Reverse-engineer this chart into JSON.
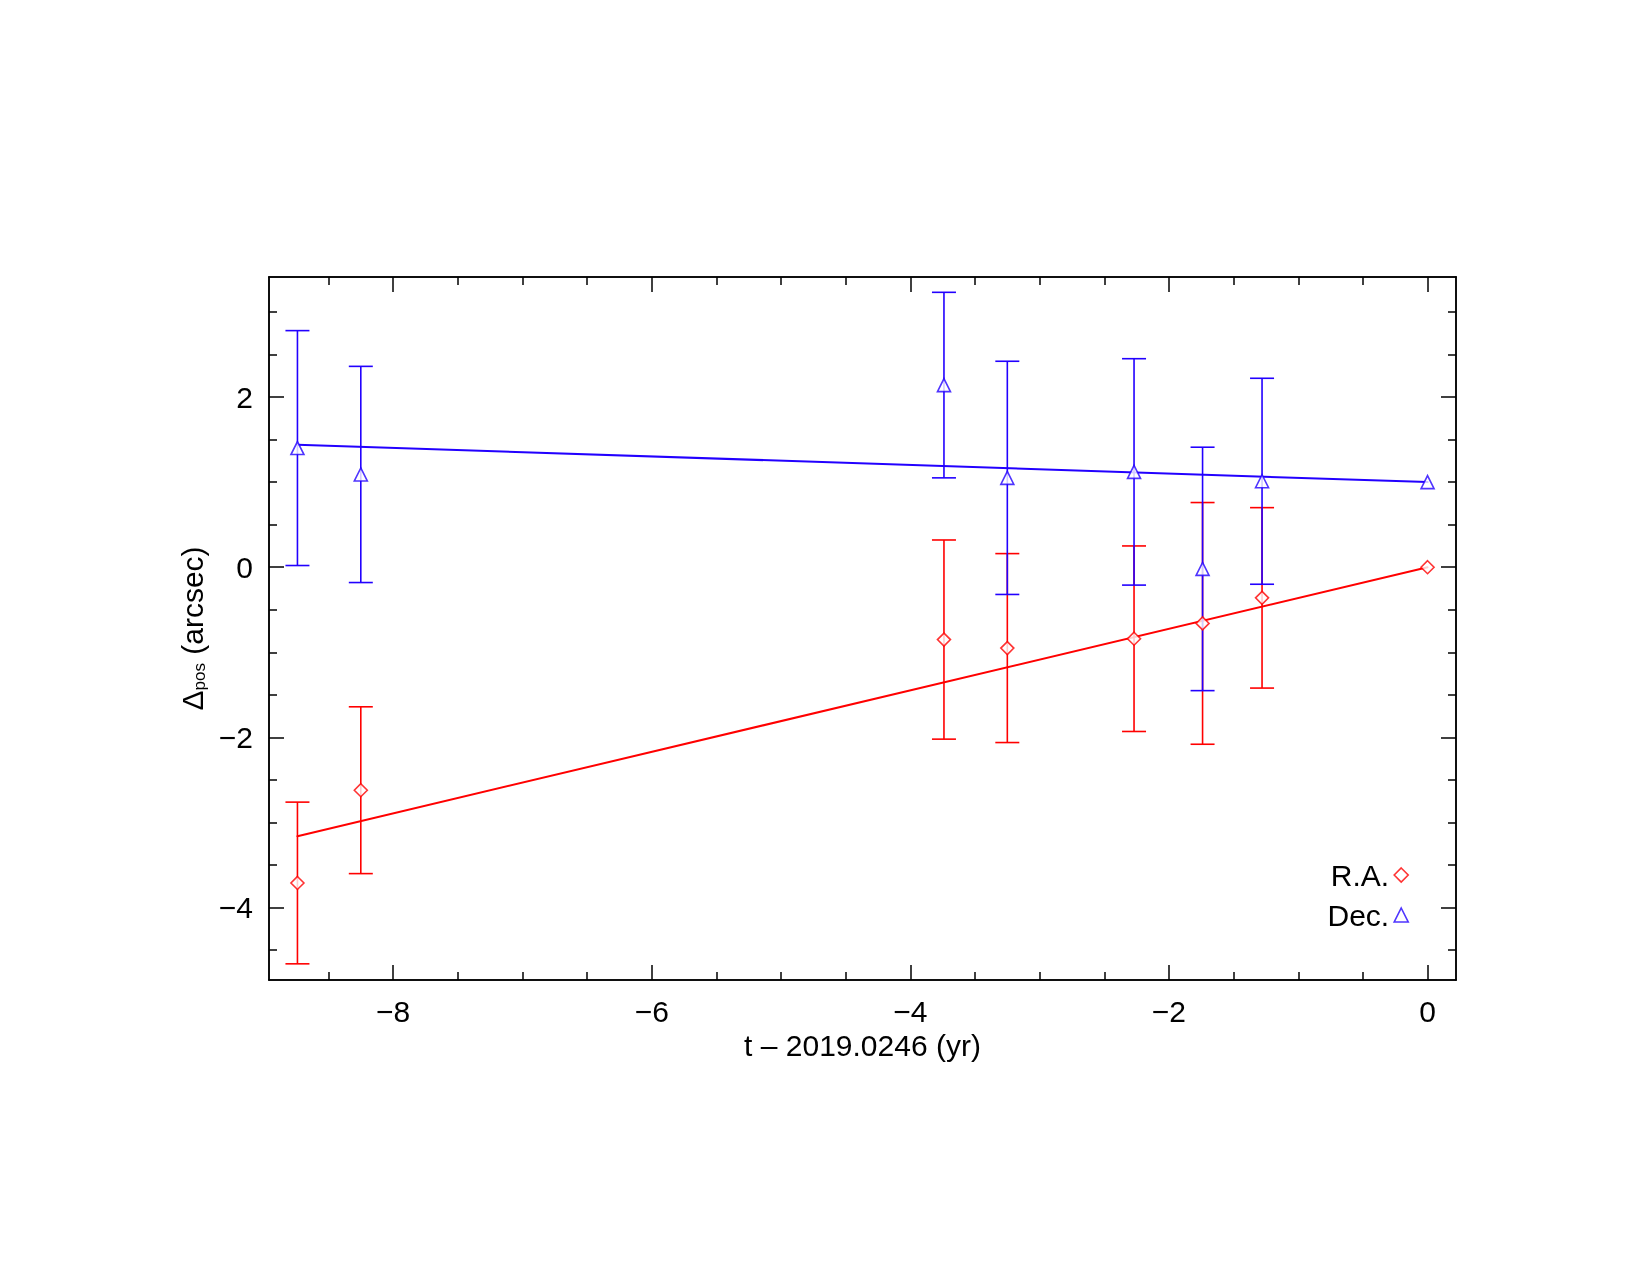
{
  "chart_data": {
    "type": "scatter",
    "xlabel": "t – 2019.0246 (yr)",
    "ylabel": "Δ$_{pos}$ (arcsec)",
    "xlim": [
      -8.96,
      0.22
    ],
    "xticks": [
      {
        "value": -8.5,
        "label": null
      },
      {
        "value": -8,
        "label": "−8"
      },
      {
        "value": -7.5,
        "label": null
      },
      {
        "value": -7,
        "label": null
      },
      {
        "value": -6.5,
        "label": null
      },
      {
        "value": -6,
        "label": "−6"
      },
      {
        "value": -5.5,
        "label": null
      },
      {
        "value": -5,
        "label": null
      },
      {
        "value": -4.5,
        "label": null
      },
      {
        "value": -4,
        "label": "−4"
      },
      {
        "value": -3.5,
        "label": null
      },
      {
        "value": -3,
        "label": null
      },
      {
        "value": -2.5,
        "label": null
      },
      {
        "value": -2,
        "label": "−2"
      },
      {
        "value": -1.5,
        "label": null
      },
      {
        "value": -1,
        "label": null
      },
      {
        "value": -0.5,
        "label": null
      },
      0
    ],
    "ylim": [
      -4.85,
      3.41
    ],
    "yticks": [
      {
        "value": -4.5,
        "label": null
      },
      {
        "value": -4,
        "label": "−4"
      },
      {
        "value": -3.5,
        "label": null
      },
      {
        "value": -3,
        "label": null
      },
      {
        "value": -2.5,
        "label": null
      },
      {
        "value": -2,
        "label": "−2"
      },
      {
        "value": -1.5,
        "label": null
      },
      {
        "value": -1,
        "label": null
      },
      {
        "value": -0.5,
        "label": null
      },
      0,
      {
        "value": 0.5,
        "label": null
      },
      {
        "value": 1,
        "label": null
      },
      {
        "value": 1.5,
        "label": null
      },
      2,
      {
        "value": 2.5,
        "label": null
      },
      {
        "value": 3,
        "label": null
      }
    ],
    "grid": false,
    "legend": "bottom right",
    "series": [
      {
        "name": "R.A.",
        "marker": "diamond",
        "color": "#ff0000",
        "x": [
          -8.74,
          -8.25,
          -3.74,
          -3.25,
          -2.27,
          -1.74,
          -1.28,
          0
        ],
        "values": [
          -3.71,
          -2.62,
          -0.85,
          -0.95,
          -0.84,
          -0.66,
          -0.36,
          0
        ],
        "errors": [
          0.95,
          0.98,
          1.17,
          1.11,
          1.09,
          1.42,
          1.06,
          null
        ]
      },
      {
        "name": "Dec.",
        "marker": "triangle",
        "color": "#2200ff",
        "x": [
          -8.74,
          -8.25,
          -3.74,
          -3.25,
          -2.27,
          -1.74,
          -1.28,
          0
        ],
        "values": [
          1.4,
          1.09,
          2.14,
          1.05,
          1.12,
          -0.02,
          1.01,
          1.0
        ],
        "errors": [
          1.38,
          1.27,
          1.09,
          1.37,
          1.33,
          1.43,
          1.21,
          null
        ]
      },
      {
        "type": "line",
        "marker": "none",
        "color": "#ff0000",
        "x": [
          -8.74,
          0
        ],
        "values": [
          -3.16,
          0
        ]
      },
      {
        "type": "line",
        "marker": "none",
        "color": "#2200ff",
        "x": [
          -8.74,
          0
        ],
        "values": [
          1.44,
          1.0
        ]
      }
    ]
  }
}
